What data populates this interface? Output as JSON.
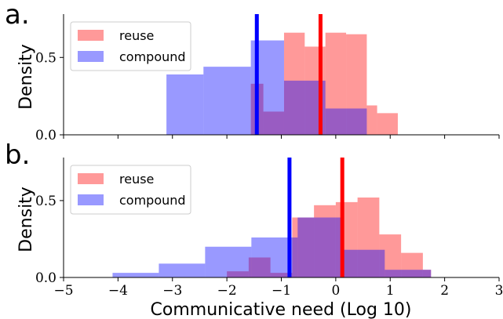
{
  "chart_data": [
    {
      "type": "histogram",
      "panel_label": "a.",
      "ylabel": "Density",
      "xlim": [
        -5,
        3
      ],
      "ylim": [
        0,
        0.78
      ],
      "yticks": [
        0.0,
        0.5
      ],
      "ytick_labels": [
        "0.0",
        "0.5"
      ],
      "legend": {
        "position": "top-left",
        "entries": [
          "reuse",
          "compound"
        ]
      },
      "series": [
        {
          "name": "reuse",
          "color": "#ff6666",
          "bins": [
            {
              "x0": -1.56,
              "x1": -1.33,
              "value": 0.33
            },
            {
              "x0": -1.33,
              "x1": -0.95,
              "value": 0.15
            },
            {
              "x0": -0.95,
              "x1": -0.57,
              "value": 0.66
            },
            {
              "x0": -0.57,
              "x1": -0.19,
              "value": 0.57
            },
            {
              "x0": -0.19,
              "x1": 0.19,
              "value": 0.66
            },
            {
              "x0": 0.19,
              "x1": 0.57,
              "value": 0.65
            },
            {
              "x0": 0.57,
              "x1": 0.76,
              "value": 0.19
            },
            {
              "x0": 0.76,
              "x1": 1.14,
              "value": 0.14
            }
          ],
          "mean": -0.28
        },
        {
          "name": "compound",
          "color": "#6666ff",
          "bins": [
            {
              "x0": -3.11,
              "x1": -2.43,
              "value": 0.39
            },
            {
              "x0": -2.43,
              "x1": -1.56,
              "value": 0.44
            },
            {
              "x0": -1.56,
              "x1": -0.95,
              "value": 0.61
            },
            {
              "x0": -0.95,
              "x1": -0.19,
              "value": 0.35
            },
            {
              "x0": -0.19,
              "x1": 0.57,
              "value": 0.17
            }
          ],
          "mean": -1.45
        }
      ]
    },
    {
      "type": "histogram",
      "panel_label": "b.",
      "ylabel": "Density",
      "xlabel": "Communicative need (Log 10)",
      "xlim": [
        -5,
        3
      ],
      "ylim": [
        0,
        0.78
      ],
      "xticks": [
        -5,
        -4,
        -3,
        -2,
        -1,
        0,
        1,
        2,
        3
      ],
      "xtick_labels": [
        "−5",
        "−4",
        "−3",
        "−2",
        "−1",
        "0",
        "1",
        "2",
        "3"
      ],
      "yticks": [
        0.0,
        0.5
      ],
      "ytick_labels": [
        "0.0",
        "0.5"
      ],
      "legend": {
        "position": "top-left",
        "entries": [
          "reuse",
          "compound"
        ]
      },
      "series": [
        {
          "name": "reuse",
          "color": "#ff6666",
          "bins": [
            {
              "x0": -2.0,
              "x1": -1.6,
              "value": 0.04
            },
            {
              "x0": -1.6,
              "x1": -1.2,
              "value": 0.13
            },
            {
              "x0": -1.2,
              "x1": -0.8,
              "value": 0.03
            },
            {
              "x0": -0.8,
              "x1": -0.4,
              "value": 0.39
            },
            {
              "x0": -0.4,
              "x1": 0.0,
              "value": 0.47
            },
            {
              "x0": 0.0,
              "x1": 0.4,
              "value": 0.49
            },
            {
              "x0": 0.4,
              "x1": 0.8,
              "value": 0.52
            },
            {
              "x0": 0.8,
              "x1": 1.2,
              "value": 0.28
            },
            {
              "x0": 1.2,
              "x1": 1.6,
              "value": 0.16
            },
            {
              "x0": 1.6,
              "x1": 1.75,
              "value": 0.05
            }
          ],
          "mean": 0.12
        },
        {
          "name": "compound",
          "color": "#6666ff",
          "bins": [
            {
              "x0": -4.1,
              "x1": -3.25,
              "value": 0.03
            },
            {
              "x0": -3.25,
              "x1": -2.4,
              "value": 0.09
            },
            {
              "x0": -2.4,
              "x1": -1.55,
              "value": 0.2
            },
            {
              "x0": -1.55,
              "x1": -0.7,
              "value": 0.26
            },
            {
              "x0": -0.7,
              "x1": 0.1,
              "value": 0.39
            },
            {
              "x0": 0.1,
              "x1": 0.9,
              "value": 0.18
            },
            {
              "x0": 0.9,
              "x1": 1.75,
              "value": 0.05
            }
          ],
          "mean": -0.85
        }
      ]
    }
  ]
}
